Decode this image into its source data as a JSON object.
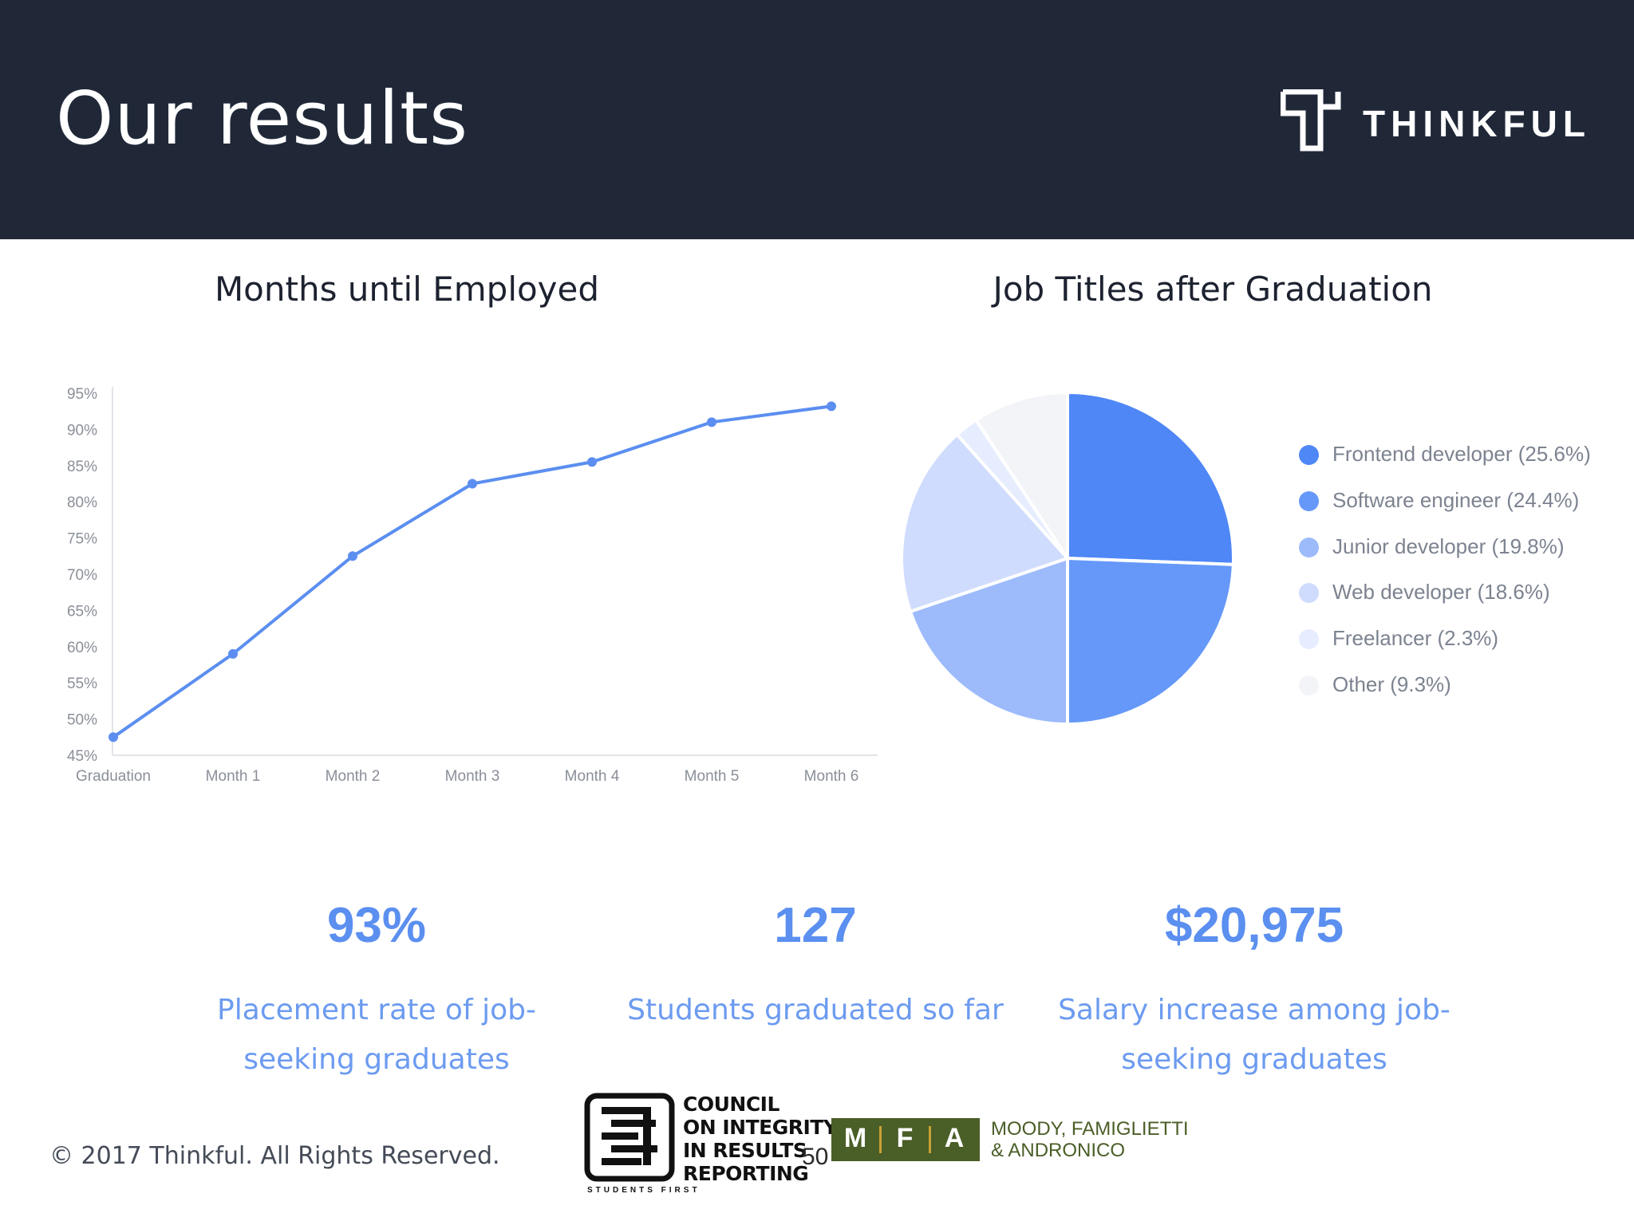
{
  "header": {
    "title": "Our results",
    "brand": "THINKFUL"
  },
  "sections": {
    "line_title": "Months until Employed",
    "pie_title": "Job Titles after Graduation"
  },
  "chart_data": [
    {
      "type": "line",
      "title": "Months until Employed",
      "categories": [
        "Graduation",
        "Month 1",
        "Month 2",
        "Month 3",
        "Month 4",
        "Month 5",
        "Month 6"
      ],
      "series": [
        {
          "values": [
            47.5,
            59,
            72.5,
            82.5,
            85.5,
            91,
            93.2
          ]
        }
      ],
      "y_ticks": [
        "95%",
        "90%",
        "85%",
        "80%",
        "75%",
        "70%",
        "65%",
        "60%",
        "55%",
        "50%",
        "45%"
      ],
      "ylim": [
        45,
        95
      ],
      "grid": false,
      "color": "#5b8ef0"
    },
    {
      "type": "pie",
      "title": "Job Titles after Graduation",
      "legend_position": "right",
      "slices": [
        {
          "label": "Frontend developer (25.6%)",
          "value": 25.6,
          "color": "#4f87f7"
        },
        {
          "label": "Software engineer (24.4%)",
          "value": 24.4,
          "color": "#6598f8"
        },
        {
          "label": "Junior developer (19.8%)",
          "value": 19.8,
          "color": "#9dbbfb"
        },
        {
          "label": "Web developer (18.6%)",
          "value": 18.6,
          "color": "#cfdcfd"
        },
        {
          "label": "Freelancer (2.3%)",
          "value": 2.3,
          "color": "#e6edfe"
        },
        {
          "label": "Other (9.3%)",
          "value": 9.3,
          "color": "#f3f4f7"
        }
      ]
    }
  ],
  "stats": [
    {
      "value": "93%",
      "description": "Placement rate of job-seeking graduates"
    },
    {
      "value": "127",
      "description": "Students graduated so far"
    },
    {
      "value": "$20,975",
      "description": "Salary increase among job-seeking graduates"
    }
  ],
  "footer": {
    "copyright": "© 2017 Thinkful. All Rights Reserved.",
    "page_number": "50",
    "cirr": {
      "lines": [
        "COUNCIL",
        "ON INTEGRITY",
        "IN RESULTS",
        "REPORTING"
      ],
      "tagline": "STUDENTS FIRST"
    },
    "mfa": {
      "letters": [
        "M",
        "F",
        "A"
      ],
      "line1": "MOODY, FAMIGLIETTI",
      "line2": "& ANDRONICO"
    }
  }
}
